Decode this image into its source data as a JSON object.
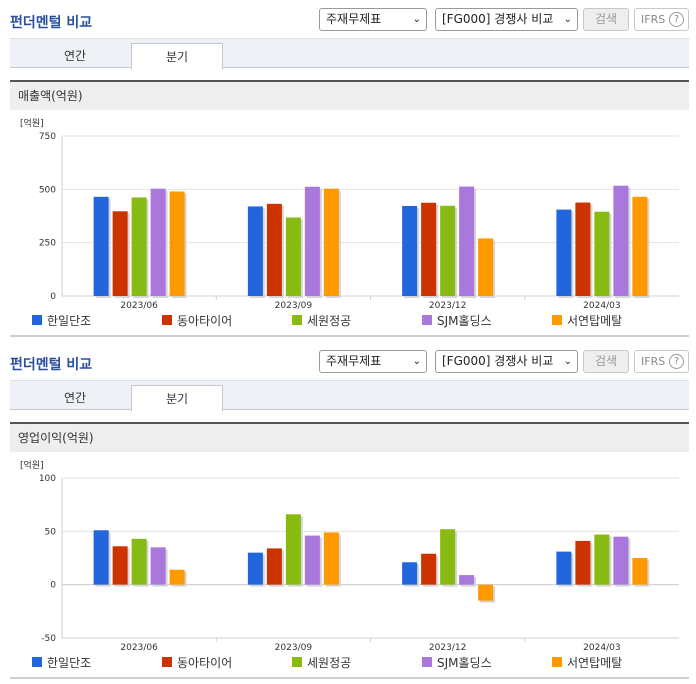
{
  "colors": {
    "series": [
      "#2266dd",
      "#cc3300",
      "#88bb11",
      "#aa77dd",
      "#ff9900"
    ]
  },
  "panels": [
    {
      "title": "펀더멘털 비교",
      "select_report": "주재무제표",
      "select_group": "[FG000] 경쟁사 비교",
      "search_label": "검색",
      "ifrs_label": "IFRS",
      "ifrs_help": "?",
      "tabs": [
        {
          "label": "연간"
        },
        {
          "label": "분기"
        }
      ],
      "metric_label": "매출액(억원)",
      "unit_label": "[억원]"
    },
    {
      "title": "펀더멘털 비교",
      "select_report": "주재무제표",
      "select_group": "[FG000] 경쟁사 비교",
      "search_label": "검색",
      "ifrs_label": "IFRS",
      "ifrs_help": "?",
      "tabs": [
        {
          "label": "연간"
        },
        {
          "label": "분기"
        }
      ],
      "metric_label": "영업이익(억원)",
      "unit_label": "[억원]"
    }
  ],
  "chart_data": [
    {
      "type": "bar",
      "ylabel": "[억원]",
      "ylim": [
        0,
        750
      ],
      "yticks": [
        0,
        250,
        500,
        750
      ],
      "categories": [
        "2023/06",
        "2023/09",
        "2023/12",
        "2024/03"
      ],
      "grid": true,
      "legend": "bottom",
      "series": [
        {
          "name": "한일단조",
          "values": [
            465,
            420,
            422,
            405
          ]
        },
        {
          "name": "동아타이어",
          "values": [
            397,
            432,
            437,
            438
          ]
        },
        {
          "name": "세원정공",
          "values": [
            462,
            368,
            423,
            395
          ]
        },
        {
          "name": "SJM홀딩스",
          "values": [
            503,
            512,
            513,
            517
          ]
        },
        {
          "name": "서연탑메탈",
          "values": [
            490,
            503,
            270,
            465
          ]
        }
      ]
    },
    {
      "type": "bar",
      "ylabel": "[억원]",
      "ylim": [
        -50,
        100
      ],
      "yticks": [
        -50,
        0,
        50,
        100
      ],
      "categories": [
        "2023/06",
        "2023/09",
        "2023/12",
        "2024/03"
      ],
      "grid": true,
      "legend": "bottom",
      "series": [
        {
          "name": "한일단조",
          "values": [
            51,
            30,
            21,
            31
          ]
        },
        {
          "name": "동아타이어",
          "values": [
            36,
            34,
            29,
            41
          ]
        },
        {
          "name": "세원정공",
          "values": [
            43,
            66,
            52,
            47
          ]
        },
        {
          "name": "SJM홀딩스",
          "values": [
            35,
            46,
            9,
            45
          ]
        },
        {
          "name": "서연탑메탈",
          "values": [
            14,
            49,
            -15,
            25
          ]
        }
      ]
    }
  ]
}
